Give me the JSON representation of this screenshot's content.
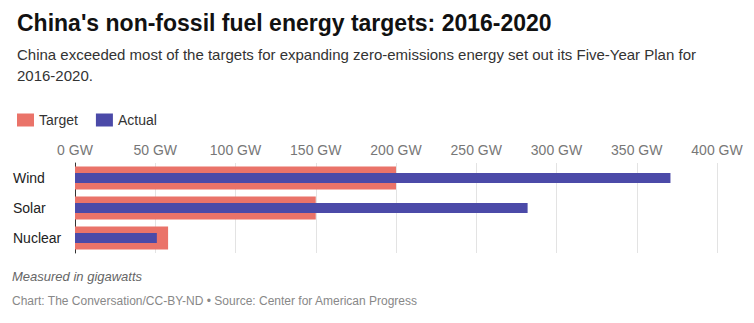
{
  "chart_data": {
    "type": "bar",
    "orientation": "horizontal",
    "title": "China's non-fossil fuel energy targets: 2016-2020",
    "subtitle": "China exceeded most of the targets for expanding zero-emissions energy set out its Five-Year Plan for 2016-2020.",
    "note": "Measured in gigawatts",
    "source": "Chart: The Conversation/CC-BY-ND • Source: Center for American Progress",
    "categories": [
      "Wind",
      "Solar",
      "Nuclear"
    ],
    "series": [
      {
        "name": "Target",
        "color": "#ea7369",
        "values": [
          200,
          150,
          58
        ]
      },
      {
        "name": "Actual",
        "color": "#4b4aa8",
        "values": [
          371,
          282,
          51
        ]
      }
    ],
    "xlim": [
      0,
      400
    ],
    "xticks": [
      {
        "value": 0,
        "label": "0 GW"
      },
      {
        "value": 50,
        "label": "50 GW"
      },
      {
        "value": 100,
        "label": "100 GW"
      },
      {
        "value": 150,
        "label": "150 GW"
      },
      {
        "value": 200,
        "label": "200 GW"
      },
      {
        "value": 250,
        "label": "250 GW"
      },
      {
        "value": 300,
        "label": "300 GW"
      },
      {
        "value": 350,
        "label": "350 GW"
      },
      {
        "value": 400,
        "label": "400 GW"
      }
    ],
    "grid": true,
    "legend": "top-left"
  }
}
